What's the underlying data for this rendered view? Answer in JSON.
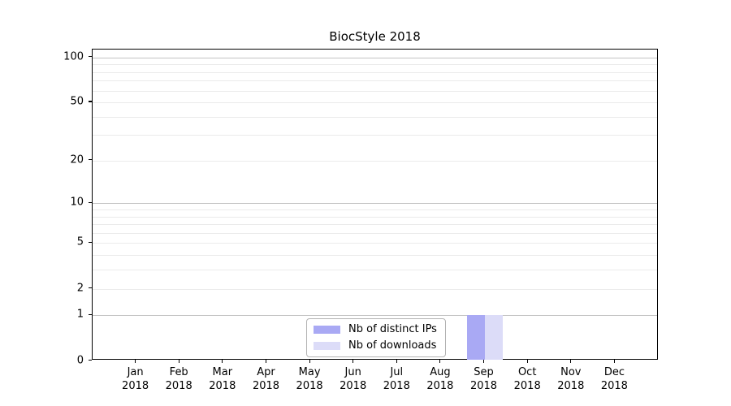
{
  "chart_data": {
    "type": "bar",
    "title": "BiocStyle 2018",
    "categories": [
      "Jan 2018",
      "Feb 2018",
      "Mar 2018",
      "Apr 2018",
      "May 2018",
      "Jun 2018",
      "Jul 2018",
      "Aug 2018",
      "Sep 2018",
      "Oct 2018",
      "Nov 2018",
      "Dec 2018"
    ],
    "series": [
      {
        "name": "Nb of distinct IPs",
        "color": "#a9a9f4",
        "values": [
          0,
          0,
          0,
          0,
          0,
          0,
          0,
          0,
          1,
          0,
          0,
          0
        ]
      },
      {
        "name": "Nb of downloads",
        "color": "#dcdcf8",
        "values": [
          0,
          0,
          0,
          0,
          0,
          0,
          0,
          0,
          1,
          0,
          0,
          0
        ]
      }
    ],
    "xlabel": "",
    "ylabel": "",
    "y_axis": {
      "scale": "log1p",
      "tick_values": [
        0,
        1,
        2,
        5,
        10,
        20,
        50,
        100
      ],
      "major_grid_values": [
        1,
        10,
        100
      ],
      "minor_grid_values": [
        2,
        3,
        4,
        5,
        6,
        7,
        8,
        9,
        20,
        30,
        40,
        50,
        60,
        70,
        80,
        90
      ],
      "ylim": [
        0,
        113
      ]
    },
    "grid": true,
    "legend_position": "lower center"
  },
  "colors": {
    "major_grid": "#c3c3c3",
    "minor_grid": "#ebebeb",
    "axis_spine": "#000000",
    "background": "#ffffff"
  }
}
